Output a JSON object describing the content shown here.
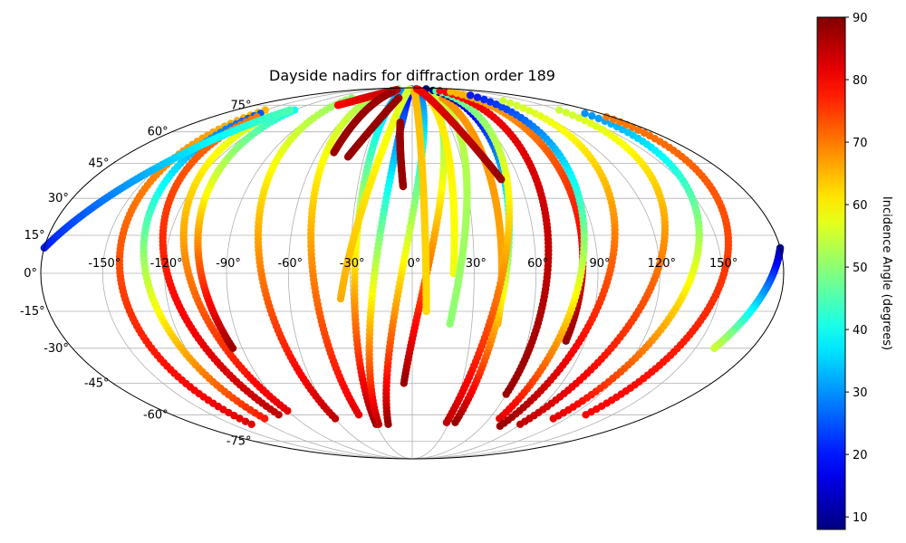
{
  "chart_data": {
    "type": "scatter",
    "projection": "mollweide",
    "title": "Dayside nadirs for diffraction order 189",
    "grid": true,
    "lon_ticks": [
      "-150°",
      "-120°",
      "-90°",
      "-60°",
      "-30°",
      "0°",
      "30°",
      "60°",
      "90°",
      "120°",
      "150°"
    ],
    "lat_ticks": [
      "75°",
      "60°",
      "45°",
      "30°",
      "15°",
      "0°",
      "-15°",
      "-30°",
      "-45°",
      "-60°",
      "-75°"
    ],
    "lon_tick_values": [
      -150,
      -120,
      -90,
      -60,
      -30,
      0,
      30,
      60,
      90,
      120,
      150
    ],
    "lat_tick_values": [
      75,
      60,
      45,
      30,
      15,
      0,
      -15,
      -30,
      -45,
      -60,
      -75
    ],
    "colorbar": {
      "label": "Incidence Angle (degrees)",
      "range": [
        8,
        90
      ],
      "ticks": [
        "10",
        "20",
        "30",
        "40",
        "50",
        "60",
        "70",
        "80",
        "90"
      ],
      "tick_values": [
        10,
        20,
        30,
        40,
        50,
        60,
        70,
        80,
        90
      ],
      "colormap": "jet",
      "legend_position": "right"
    },
    "series": [
      {
        "start": [
          -150,
          72
        ],
        "end": [
          -134,
          -65
        ],
        "inc_start": 65,
        "inc_end": 82
      },
      {
        "start": [
          -145,
          70
        ],
        "end": [
          -115,
          -62
        ],
        "inc_start": 25,
        "inc_end": 78
      },
      {
        "start": [
          -140,
          68
        ],
        "end": [
          -100,
          -60
        ],
        "inc_start": 70,
        "inc_end": 85
      },
      {
        "start": [
          -130,
          68
        ],
        "end": [
          -90,
          -58
        ],
        "inc_start": 55,
        "inc_end": 82
      },
      {
        "start": [
          -120,
          72
        ],
        "end": [
          -95,
          -30
        ],
        "inc_start": 40,
        "inc_end": 88
      },
      {
        "start": [
          -90,
          80
        ],
        "end": [
          -60,
          -62
        ],
        "inc_start": 50,
        "inc_end": 85
      },
      {
        "start": [
          -60,
          88
        ],
        "end": [
          -40,
          -60
        ],
        "inc_start": 50,
        "inc_end": 82
      },
      {
        "start": [
          -25,
          85
        ],
        "end": [
          -30,
          -65
        ],
        "inc_start": 30,
        "inc_end": 88
      },
      {
        "start": [
          -5,
          88
        ],
        "end": [
          -28,
          -65
        ],
        "inc_start": 15,
        "inc_end": 85
      },
      {
        "start": [
          15,
          88
        ],
        "end": [
          -20,
          -65
        ],
        "inc_start": 25,
        "inc_end": 88
      },
      {
        "start": [
          30,
          86
        ],
        "end": [
          -5,
          -45
        ],
        "inc_start": 40,
        "inc_end": 88
      },
      {
        "start": [
          -10,
          88
        ],
        "end": [
          -35,
          -10
        ],
        "inc_start": 55,
        "inc_end": 66
      },
      {
        "start": [
          5,
          86
        ],
        "end": [
          7,
          -15
        ],
        "inc_start": 65,
        "inc_end": 62
      },
      {
        "start": [
          25,
          86
        ],
        "end": [
          20,
          0
        ],
        "inc_start": 62,
        "inc_end": 58
      },
      {
        "start": [
          40,
          85
        ],
        "end": [
          19,
          -20
        ],
        "inc_start": 55,
        "inc_end": 50
      },
      {
        "start": [
          45,
          80
        ],
        "end": [
          43,
          -20
        ],
        "inc_start": 68,
        "inc_end": 66
      },
      {
        "start": [
          60,
          88
        ],
        "end": [
          35,
          -64
        ],
        "inc_start": 8,
        "inc_end": 88
      },
      {
        "start": [
          65,
          86
        ],
        "end": [
          28,
          -64
        ],
        "inc_start": 45,
        "inc_end": 85
      },
      {
        "start": [
          75,
          86
        ],
        "end": [
          60,
          -50
        ],
        "inc_start": 80,
        "inc_end": 88
      },
      {
        "start": [
          90,
          85
        ],
        "end": [
          80,
          -27
        ],
        "inc_start": 65,
        "inc_end": 88
      },
      {
        "start": [
          100,
          82
        ],
        "end": [
          68,
          -62
        ],
        "inc_start": 20,
        "inc_end": 82
      },
      {
        "start": [
          120,
          78
        ],
        "end": [
          75,
          -66
        ],
        "inc_start": 55,
        "inc_end": 88
      },
      {
        "start": [
          150,
          72
        ],
        "end": [
          90,
          -65
        ],
        "inc_start": 55,
        "inc_end": 85
      },
      {
        "start": [
          165,
          70
        ],
        "end": [
          110,
          -62
        ],
        "inc_start": 30,
        "inc_end": 82
      },
      {
        "start": [
          175,
          68
        ],
        "end": [
          130,
          -60
        ],
        "inc_start": 70,
        "inc_end": 80
      },
      {
        "start": [
          180,
          10
        ],
        "end": [
          160,
          -30
        ],
        "inc_start": 10,
        "inc_end": 55
      },
      {
        "start": [
          -180,
          10
        ],
        "end": [
          -125,
          72
        ],
        "inc_start": 20,
        "inc_end": 45
      },
      {
        "start": [
          -85,
          75
        ],
        "end": [
          -50,
          87
        ],
        "inc_start": 80,
        "inc_end": 85
      },
      {
        "start": [
          -50,
          50
        ],
        "end": [
          -45,
          85
        ],
        "inc_start": 88,
        "inc_end": 88
      },
      {
        "start": [
          -40,
          48
        ],
        "end": [
          -20,
          80
        ],
        "inc_start": 88,
        "inc_end": 88
      },
      {
        "start": [
          20,
          88
        ],
        "end": [
          50,
          38
        ],
        "inc_start": 80,
        "inc_end": 88
      },
      {
        "start": [
          -10,
          65
        ],
        "end": [
          -5,
          35
        ],
        "inc_start": 88,
        "inc_end": 88
      }
    ]
  }
}
